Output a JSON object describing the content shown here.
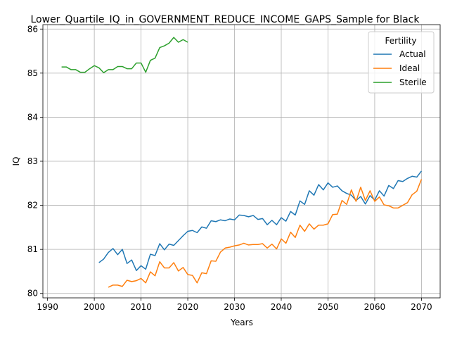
{
  "chart_data": {
    "type": "line",
    "title": "Lower_Quartile_IQ_in_GOVERNMENT_REDUCE_INCOME_GAPS_Sample for Black",
    "xlabel": "Years",
    "ylabel": "IQ",
    "xlim": [
      1989,
      2074
    ],
    "ylim": [
      79.9,
      86.1
    ],
    "xticks": [
      "1990",
      "2000",
      "2010",
      "2020",
      "2030",
      "2040",
      "2050",
      "2060",
      "2070"
    ],
    "yticks": [
      "80",
      "81",
      "82",
      "83",
      "84",
      "85",
      "86"
    ],
    "grid": true,
    "legend": {
      "title": "Fertility",
      "placement": "top-right"
    },
    "series": [
      {
        "name": "Actual",
        "color": "#1f77b4",
        "x": [
          2001,
          2002,
          2003,
          2004,
          2005,
          2006,
          2007,
          2008,
          2009,
          2010,
          2011,
          2012,
          2013,
          2014,
          2015,
          2016,
          2017,
          2018,
          2019,
          2020,
          2021,
          2022,
          2023,
          2024,
          2025,
          2026,
          2027,
          2028,
          2029,
          2030,
          2031,
          2032,
          2033,
          2034,
          2035,
          2036,
          2037,
          2038,
          2039,
          2040,
          2041,
          2042,
          2043,
          2044,
          2045,
          2046,
          2047,
          2048,
          2049,
          2050,
          2051,
          2052,
          2053,
          2054,
          2055,
          2056,
          2057,
          2058,
          2059,
          2060,
          2061,
          2062,
          2063,
          2064,
          2065,
          2066,
          2067,
          2068,
          2069,
          2070
        ],
        "values": [
          80.7,
          80.78,
          80.93,
          81.02,
          80.88,
          81.0,
          80.68,
          80.76,
          80.52,
          80.63,
          80.55,
          80.89,
          80.86,
          81.13,
          80.99,
          81.12,
          81.09,
          81.2,
          81.31,
          81.41,
          81.43,
          81.38,
          81.51,
          81.48,
          81.65,
          81.63,
          81.67,
          81.65,
          81.69,
          81.67,
          81.78,
          81.77,
          81.74,
          81.77,
          81.68,
          81.7,
          81.56,
          81.66,
          81.56,
          81.72,
          81.64,
          81.86,
          81.78,
          82.1,
          82.02,
          82.33,
          82.23,
          82.47,
          82.35,
          82.51,
          82.41,
          82.44,
          82.33,
          82.27,
          82.23,
          82.11,
          82.2,
          82.03,
          82.22,
          82.12,
          82.33,
          82.21,
          82.45,
          82.38,
          82.56,
          82.54,
          82.61,
          82.66,
          82.64,
          82.78
        ]
      },
      {
        "name": "Ideal",
        "color": "#ff7f0e",
        "x": [
          2003,
          2004,
          2005,
          2006,
          2007,
          2008,
          2009,
          2010,
          2011,
          2012,
          2013,
          2014,
          2015,
          2016,
          2017,
          2018,
          2019,
          2020,
          2021,
          2022,
          2023,
          2024,
          2025,
          2026,
          2027,
          2028,
          2029,
          2030,
          2031,
          2032,
          2033,
          2034,
          2035,
          2036,
          2037,
          2038,
          2039,
          2040,
          2041,
          2042,
          2043,
          2044,
          2045,
          2046,
          2047,
          2048,
          2049,
          2050,
          2051,
          2052,
          2053,
          2054,
          2055,
          2056,
          2057,
          2058,
          2059,
          2060,
          2061,
          2062,
          2063,
          2064,
          2065,
          2066,
          2067,
          2068,
          2069,
          2070
        ],
        "values": [
          80.14,
          80.19,
          80.19,
          80.16,
          80.3,
          80.27,
          80.29,
          80.34,
          80.24,
          80.49,
          80.4,
          80.72,
          80.58,
          80.58,
          80.7,
          80.51,
          80.59,
          80.43,
          80.41,
          80.24,
          80.47,
          80.45,
          80.74,
          80.73,
          80.94,
          81.03,
          81.05,
          81.08,
          81.1,
          81.14,
          81.1,
          81.11,
          81.11,
          81.13,
          81.03,
          81.12,
          81.01,
          81.24,
          81.14,
          81.39,
          81.27,
          81.55,
          81.41,
          81.58,
          81.46,
          81.55,
          81.55,
          81.58,
          81.79,
          81.8,
          82.11,
          82.02,
          82.35,
          82.09,
          82.41,
          82.11,
          82.33,
          82.09,
          82.19,
          82.01,
          81.99,
          81.94,
          81.94,
          82.0,
          82.06,
          82.24,
          82.32,
          82.59
        ]
      },
      {
        "name": "Sterile",
        "color": "#2ca02c",
        "x": [
          1993,
          1994,
          1995,
          1996,
          1997,
          1998,
          1999,
          2000,
          2001,
          2002,
          2003,
          2004,
          2005,
          2006,
          2007,
          2008,
          2009,
          2010,
          2011,
          2012,
          2013,
          2014,
          2015,
          2016,
          2017,
          2018,
          2019,
          2020
        ],
        "values": [
          85.14,
          85.14,
          85.08,
          85.08,
          85.02,
          85.02,
          85.1,
          85.17,
          85.12,
          85.01,
          85.08,
          85.08,
          85.15,
          85.15,
          85.1,
          85.1,
          85.23,
          85.23,
          85.02,
          85.29,
          85.34,
          85.58,
          85.62,
          85.68,
          85.81,
          85.7,
          85.76,
          85.7
        ]
      }
    ]
  }
}
